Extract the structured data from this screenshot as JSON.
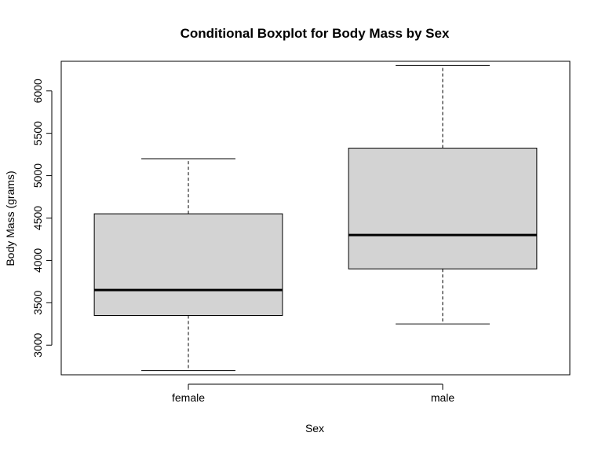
{
  "chart_data": {
    "type": "boxplot",
    "title": "Conditional Boxplot for Body Mass by Sex",
    "xlabel": "Sex",
    "ylabel": "Body Mass (grams)",
    "ylim": [
      2650,
      6350
    ],
    "yticks": [
      3000,
      3500,
      4000,
      4500,
      5000,
      5500,
      6000
    ],
    "grid": false,
    "categories": [
      "female",
      "male"
    ],
    "boxes": [
      {
        "category": "female",
        "min": 2700,
        "q1": 3350,
        "median": 3650,
        "q3": 4550,
        "max": 5200
      },
      {
        "category": "male",
        "min": 3250,
        "q1": 3900,
        "median": 4300,
        "q3": 5325,
        "max": 6300
      }
    ],
    "box_color": "#d3d3d3"
  }
}
